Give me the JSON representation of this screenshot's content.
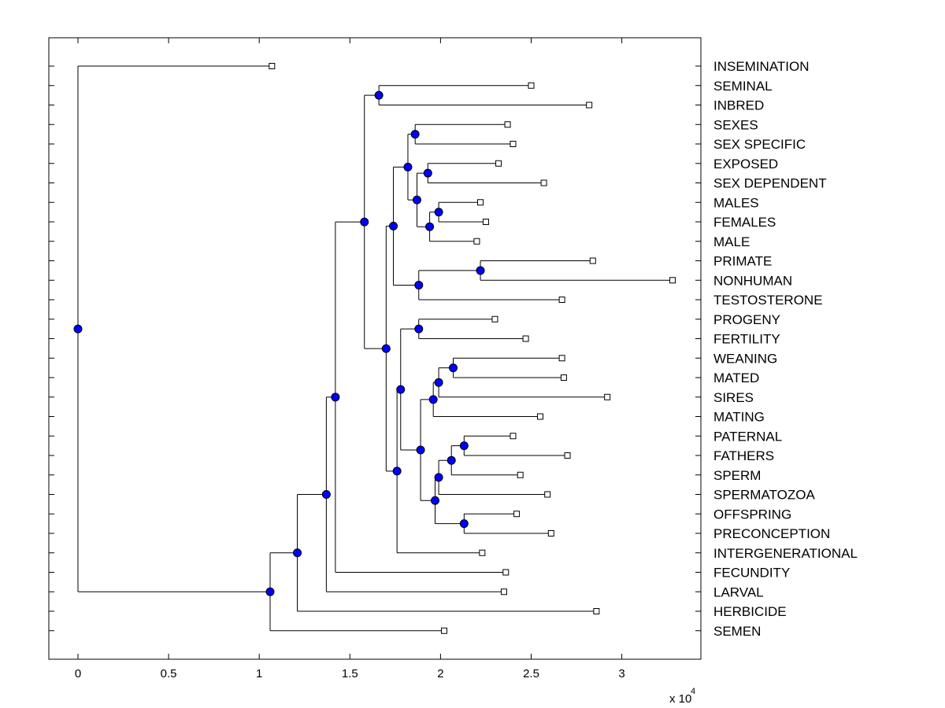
{
  "chart_data": {
    "type": "dendrogram",
    "xlim": [
      -0.16,
      3.43
    ],
    "x_ticks": [
      0,
      0.5,
      1,
      1.5,
      2,
      2.5,
      3
    ],
    "x_tick_labels": [
      "0",
      "0.5",
      "1",
      "1.5",
      "2",
      "2.5",
      "3"
    ],
    "scale_text": "x 10",
    "scale_exponent": "4",
    "colors": {
      "node": "#0000ff",
      "line": "#000000",
      "leaf_fill": "#ffffff"
    },
    "leaves": [
      {
        "label": "INSEMINATION",
        "x": 1.07
      },
      {
        "label": "SEMINAL",
        "x": 2.5
      },
      {
        "label": "INBRED",
        "x": 2.82
      },
      {
        "label": "SEXES",
        "x": 2.37
      },
      {
        "label": "SEX SPECIFIC",
        "x": 2.4
      },
      {
        "label": "EXPOSED",
        "x": 2.32
      },
      {
        "label": "SEX DEPENDENT",
        "x": 2.57
      },
      {
        "label": "MALES",
        "x": 2.22
      },
      {
        "label": "FEMALES",
        "x": 2.25
      },
      {
        "label": "MALE",
        "x": 2.2
      },
      {
        "label": "PRIMATE",
        "x": 2.84
      },
      {
        "label": "NONHUMAN",
        "x": 3.28
      },
      {
        "label": "TESTOSTERONE",
        "x": 2.67
      },
      {
        "label": "PROGENY",
        "x": 2.3
      },
      {
        "label": "FERTILITY",
        "x": 2.47
      },
      {
        "label": "WEANING",
        "x": 2.67
      },
      {
        "label": "MATED",
        "x": 2.68
      },
      {
        "label": "SIRES",
        "x": 2.92
      },
      {
        "label": "MATING",
        "x": 2.55
      },
      {
        "label": "PATERNAL",
        "x": 2.4
      },
      {
        "label": "FATHERS",
        "x": 2.7
      },
      {
        "label": "SPERM",
        "x": 2.44
      },
      {
        "label": "SPERMATOZOA",
        "x": 2.59
      },
      {
        "label": "OFFSPRING",
        "x": 2.42
      },
      {
        "label": "PRECONCEPTION",
        "x": 2.61
      },
      {
        "label": "INTERGENERATIONAL",
        "x": 2.23
      },
      {
        "label": "FECUNDITY",
        "x": 2.36
      },
      {
        "label": "LARVAL",
        "x": 2.35
      },
      {
        "label": "HERBICIDE",
        "x": 2.86
      },
      {
        "label": "SEMEN",
        "x": 2.02
      }
    ],
    "nodes": [
      {
        "id": "root",
        "x": 0.0,
        "children": [
          "L0",
          "n1"
        ]
      },
      {
        "id": "n1",
        "x": 1.06,
        "children": [
          "n2",
          "L29"
        ]
      },
      {
        "id": "n2",
        "x": 1.21,
        "children": [
          "n3",
          "L28"
        ]
      },
      {
        "id": "n3",
        "x": 1.37,
        "children": [
          "n4",
          "L27"
        ]
      },
      {
        "id": "n4",
        "x": 1.42,
        "children": [
          "n5",
          "L26"
        ]
      },
      {
        "id": "n5",
        "x": 1.58,
        "children": [
          "nSem",
          "n6"
        ]
      },
      {
        "id": "nSem",
        "x": 1.66,
        "children": [
          "L1",
          "L2"
        ]
      },
      {
        "id": "n6",
        "x": 1.7,
        "children": [
          "n7",
          "n12"
        ]
      },
      {
        "id": "n7",
        "x": 1.74,
        "children": [
          "n8",
          "n11"
        ]
      },
      {
        "id": "n8",
        "x": 1.82,
        "children": [
          "nSex",
          "n9"
        ]
      },
      {
        "id": "nSex",
        "x": 1.86,
        "children": [
          "L3",
          "L4"
        ]
      },
      {
        "id": "n9",
        "x": 1.87,
        "children": [
          "nExp",
          "n10"
        ]
      },
      {
        "id": "nExp",
        "x": 1.93,
        "children": [
          "L5",
          "L6"
        ]
      },
      {
        "id": "n10",
        "x": 1.94,
        "children": [
          "nMF",
          "L9"
        ]
      },
      {
        "id": "nMF",
        "x": 1.99,
        "children": [
          "L7",
          "L8"
        ]
      },
      {
        "id": "n11",
        "x": 1.88,
        "children": [
          "nPri",
          "L12"
        ]
      },
      {
        "id": "nPri",
        "x": 2.22,
        "children": [
          "L10",
          "L11"
        ]
      },
      {
        "id": "n12",
        "x": 1.76,
        "children": [
          "n13",
          "L25"
        ]
      },
      {
        "id": "n13",
        "x": 1.78,
        "children": [
          "nProg",
          "n14"
        ]
      },
      {
        "id": "nProg",
        "x": 1.88,
        "children": [
          "L13",
          "L14"
        ]
      },
      {
        "id": "n14",
        "x": 1.89,
        "children": [
          "n15",
          "n17"
        ]
      },
      {
        "id": "n15",
        "x": 1.96,
        "children": [
          "n16",
          "L18"
        ]
      },
      {
        "id": "n16",
        "x": 1.99,
        "children": [
          "nWea",
          "L17"
        ]
      },
      {
        "id": "nWea",
        "x": 2.07,
        "children": [
          "L15",
          "L16"
        ]
      },
      {
        "id": "n17",
        "x": 1.97,
        "children": [
          "n18",
          "nOff"
        ]
      },
      {
        "id": "n18",
        "x": 1.99,
        "children": [
          "n19",
          "L22"
        ]
      },
      {
        "id": "n19",
        "x": 2.06,
        "children": [
          "nPat",
          "L21"
        ]
      },
      {
        "id": "nPat",
        "x": 2.13,
        "children": [
          "L19",
          "L20"
        ]
      },
      {
        "id": "nOff",
        "x": 2.13,
        "children": [
          "L23",
          "L24"
        ]
      }
    ]
  }
}
